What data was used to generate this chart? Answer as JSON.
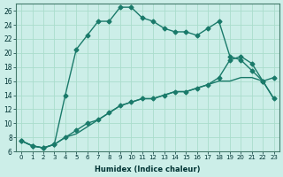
{
  "xlabel": "Humidex (Indice chaleur)",
  "background_color": "#cceee8",
  "grid_color": "#aaddcc",
  "line_color": "#1a7a6a",
  "xlim": [
    -0.5,
    23.5
  ],
  "ylim": [
    6,
    27
  ],
  "yticks": [
    6,
    8,
    10,
    12,
    14,
    16,
    18,
    20,
    22,
    24,
    26
  ],
  "xticks": [
    0,
    1,
    2,
    3,
    4,
    5,
    6,
    7,
    8,
    9,
    10,
    11,
    12,
    13,
    14,
    15,
    16,
    17,
    18,
    19,
    20,
    21,
    22,
    23
  ],
  "series1": [
    7.5,
    6.8,
    6.5,
    7.0,
    14.0,
    20.5,
    22.5,
    24.5,
    24.5,
    26.5,
    26.5,
    25.0,
    24.5,
    23.5,
    23.0,
    23.0,
    22.5,
    23.5,
    24.5,
    19.5,
    19.0,
    17.5,
    16.0,
    16.5
  ],
  "series2": [
    7.5,
    6.8,
    6.5,
    7.0,
    8.0,
    9.0,
    10.0,
    10.5,
    11.5,
    12.5,
    13.0,
    13.5,
    13.5,
    14.0,
    14.5,
    14.5,
    15.0,
    15.5,
    16.5,
    19.0,
    19.5,
    18.5,
    16.0,
    13.5
  ],
  "series3": [
    7.5,
    6.8,
    6.5,
    7.0,
    8.0,
    8.5,
    9.5,
    10.5,
    11.5,
    12.5,
    13.0,
    13.5,
    13.5,
    14.0,
    14.5,
    14.5,
    15.0,
    15.5,
    16.0,
    16.0,
    16.5,
    16.5,
    16.0,
    13.5
  ],
  "marker": "D",
  "markersize": 2.5,
  "linewidth": 1.0
}
